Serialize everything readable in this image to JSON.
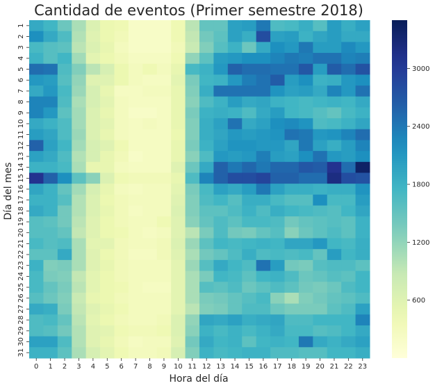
{
  "chart_data": {
    "type": "heatmap",
    "title": "Cantidad de eventos (Primer semestre 2018)",
    "xlabel": "Hora del día",
    "ylabel": "Día del mes",
    "x_categories": [
      "0",
      "1",
      "2",
      "3",
      "4",
      "5",
      "6",
      "7",
      "8",
      "9",
      "10",
      "11",
      "12",
      "13",
      "14",
      "15",
      "16",
      "17",
      "18",
      "19",
      "20",
      "21",
      "22",
      "23"
    ],
    "y_categories": [
      "1",
      "2",
      "3",
      "4",
      "5",
      "6",
      "7",
      "8",
      "9",
      "10",
      "11",
      "12",
      "13",
      "14",
      "15",
      "16",
      "17",
      "18",
      "19",
      "20",
      "21",
      "22",
      "23",
      "24",
      "25",
      "26",
      "27",
      "28",
      "29",
      "30",
      "31"
    ],
    "colorbar": {
      "colormap": "YlGnBu",
      "vmin": 0,
      "vmax": 3500,
      "ticks": [
        600,
        1200,
        1800,
        2400,
        3000
      ]
    },
    "values": [
      [
        1900,
        1750,
        1450,
        1050,
        650,
        450,
        400,
        200,
        200,
        200,
        400,
        950,
        1500,
        1500,
        2000,
        2050,
        2400,
        1650,
        1700,
        1850,
        1600,
        2050,
        1850,
        2000
      ],
      [
        2200,
        1900,
        1650,
        1000,
        600,
        450,
        350,
        200,
        200,
        200,
        400,
        900,
        1400,
        1550,
        2000,
        1850,
        2800,
        2000,
        2050,
        1800,
        1950,
        2050,
        1900,
        1900
      ],
      [
        1700,
        1600,
        1550,
        950,
        650,
        500,
        300,
        200,
        200,
        200,
        350,
        850,
        1300,
        1600,
        1800,
        1450,
        1900,
        2200,
        2100,
        2400,
        2050,
        2050,
        2250,
        2100
      ],
      [
        1800,
        1600,
        1750,
        1100,
        550,
        450,
        350,
        250,
        250,
        250,
        400,
        1200,
        1550,
        2050,
        2100,
        2200,
        2200,
        2300,
        2400,
        2350,
        2450,
        2450,
        2300,
        2350
      ],
      [
        2500,
        2450,
        1650,
        1300,
        950,
        700,
        450,
        300,
        400,
        300,
        500,
        1700,
        1800,
        2100,
        2600,
        2500,
        2500,
        2450,
        2450,
        2700,
        2050,
        2650,
        2500,
        2750
      ],
      [
        2100,
        2050,
        1600,
        1200,
        600,
        600,
        450,
        300,
        250,
        250,
        550,
        1350,
        1750,
        1800,
        2100,
        2350,
        2450,
        2650,
        2050,
        2200,
        1800,
        1850,
        2100,
        2200
      ],
      [
        1900,
        2100,
        1700,
        1150,
        700,
        500,
        250,
        250,
        300,
        300,
        500,
        1300,
        1850,
        2450,
        2450,
        2450,
        2450,
        2150,
        2000,
        2050,
        1900,
        2300,
        2100,
        2450
      ],
      [
        2300,
        2300,
        1650,
        1050,
        700,
        550,
        300,
        250,
        250,
        250,
        500,
        1250,
        1650,
        1800,
        2050,
        1900,
        1950,
        1800,
        1750,
        1700,
        1750,
        1800,
        1750,
        1900
      ],
      [
        2300,
        2100,
        1550,
        1100,
        650,
        500,
        300,
        200,
        200,
        250,
        500,
        1350,
        1800,
        1850,
        1800,
        1650,
        1900,
        2050,
        1750,
        1700,
        1600,
        1500,
        1700,
        1800
      ],
      [
        1900,
        1800,
        1650,
        1100,
        650,
        550,
        300,
        250,
        300,
        250,
        500,
        1300,
        1850,
        2000,
        2450,
        1900,
        2000,
        2200,
        2250,
        2150,
        1650,
        1700,
        1800,
        1950
      ],
      [
        2050,
        1950,
        1650,
        1150,
        650,
        500,
        300,
        250,
        250,
        250,
        450,
        1300,
        1850,
        1950,
        2100,
        2050,
        2100,
        2150,
        2450,
        2400,
        2100,
        2150,
        2300,
        2500
      ],
      [
        2600,
        2000,
        1750,
        1100,
        700,
        600,
        400,
        250,
        250,
        250,
        500,
        1350,
        1800,
        2000,
        2150,
        2150,
        2100,
        2100,
        1950,
        2400,
        2000,
        1850,
        2050,
        2300
      ],
      [
        2000,
        1900,
        1650,
        1000,
        700,
        500,
        350,
        200,
        250,
        250,
        500,
        1250,
        1650,
        2100,
        2050,
        2100,
        2350,
        2050,
        2000,
        2200,
        2450,
        2100,
        2050,
        2200
      ],
      [
        1800,
        1800,
        1700,
        1050,
        500,
        500,
        300,
        250,
        250,
        250,
        600,
        1450,
        1900,
        2600,
        2400,
        2550,
        2400,
        2550,
        2550,
        2700,
        2650,
        3100,
        2500,
        3400
      ],
      [
        3100,
        2600,
        2200,
        1550,
        1250,
        650,
        400,
        350,
        350,
        350,
        500,
        1650,
        2300,
        2600,
        2800,
        2800,
        2900,
        2600,
        2600,
        2500,
        2500,
        3200,
        2800,
        2750
      ],
      [
        1950,
        1800,
        1500,
        1100,
        700,
        500,
        300,
        250,
        300,
        300,
        550,
        1350,
        1700,
        2000,
        1900,
        2050,
        2400,
        2000,
        1850,
        1850,
        1800,
        1850,
        1850,
        2150
      ],
      [
        1800,
        1800,
        1600,
        1000,
        650,
        450,
        350,
        300,
        300,
        300,
        600,
        1300,
        1650,
        1750,
        1600,
        1850,
        1850,
        1700,
        1600,
        1600,
        2200,
        1700,
        1700,
        2050
      ],
      [
        1900,
        1800,
        1400,
        1000,
        650,
        500,
        350,
        250,
        300,
        300,
        650,
        1300,
        1550,
        1550,
        1650,
        1800,
        1650,
        1850,
        1750,
        1700,
        1650,
        1600,
        1750,
        1950
      ],
      [
        1600,
        1550,
        1400,
        950,
        600,
        450,
        350,
        300,
        300,
        400,
        600,
        1250,
        1500,
        1650,
        1550,
        1700,
        1700,
        1650,
        1400,
        1500,
        1550,
        1600,
        1550,
        1800
      ],
      [
        1600,
        1600,
        1500,
        900,
        600,
        450,
        400,
        300,
        250,
        300,
        600,
        950,
        1350,
        1650,
        1400,
        1350,
        1500,
        1600,
        1250,
        1450,
        1550,
        1650,
        1550,
        1800
      ],
      [
        1700,
        1600,
        1650,
        1050,
        550,
        550,
        350,
        300,
        300,
        350,
        650,
        1150,
        1550,
        1750,
        1700,
        1750,
        1800,
        1750,
        1950,
        1950,
        2100,
        1750,
        1700,
        1850
      ],
      [
        1550,
        1550,
        1900,
        1050,
        600,
        450,
        350,
        250,
        250,
        350,
        600,
        1050,
        1400,
        1500,
        1650,
        1850,
        1650,
        1700,
        1650,
        1700,
        1500,
        2050,
        1750,
        1850
      ],
      [
        1800,
        1300,
        1350,
        1050,
        600,
        500,
        350,
        300,
        300,
        300,
        550,
        1150,
        1600,
        1900,
        1750,
        1650,
        2450,
        2050,
        1400,
        1350,
        1600,
        1650,
        1650,
        1550
      ],
      [
        1700,
        1350,
        1300,
        900,
        550,
        450,
        350,
        300,
        300,
        300,
        550,
        1050,
        1350,
        1750,
        1700,
        1550,
        1750,
        1800,
        1650,
        1450,
        1500,
        1600,
        1550,
        1750
      ],
      [
        1700,
        1500,
        1350,
        950,
        550,
        450,
        400,
        300,
        250,
        250,
        550,
        1050,
        1600,
        1550,
        1650,
        1450,
        1550,
        1650,
        1550,
        1400,
        1350,
        1450,
        1650,
        1750
      ],
      [
        1600,
        1450,
        1300,
        850,
        500,
        450,
        350,
        300,
        300,
        300,
        550,
        1050,
        1350,
        1400,
        1500,
        1600,
        1700,
        1250,
        1050,
        1300,
        1400,
        1500,
        1550,
        1650
      ],
      [
        1900,
        1850,
        1350,
        900,
        600,
        500,
        400,
        300,
        300,
        300,
        550,
        950,
        1300,
        1350,
        1500,
        1650,
        1650,
        1450,
        1350,
        1350,
        1350,
        1550,
        1650,
        2000
      ],
      [
        1650,
        1700,
        1500,
        950,
        550,
        450,
        350,
        300,
        300,
        350,
        650,
        1200,
        1950,
        1900,
        2000,
        1850,
        1900,
        1950,
        1650,
        1650,
        1750,
        1750,
        1750,
        2300
      ],
      [
        1650,
        1600,
        1400,
        1000,
        600,
        550,
        400,
        350,
        350,
        400,
        650,
        1250,
        1800,
        1700,
        1800,
        1700,
        1800,
        1900,
        1700,
        1700,
        1600,
        1650,
        1750,
        1900
      ],
      [
        2000,
        2000,
        1650,
        1000,
        600,
        500,
        350,
        250,
        300,
        300,
        600,
        1400,
        1900,
        1750,
        1800,
        1550,
        1750,
        1800,
        1750,
        2400,
        1900,
        1800,
        1900,
        2000
      ],
      [
        1800,
        1800,
        1550,
        1050,
        700,
        550,
        400,
        300,
        300,
        350,
        700,
        1300,
        1800,
        1700,
        1750,
        1800,
        1800,
        1650,
        1650,
        1600,
        1600,
        1750,
        1750,
        1850
      ]
    ]
  }
}
